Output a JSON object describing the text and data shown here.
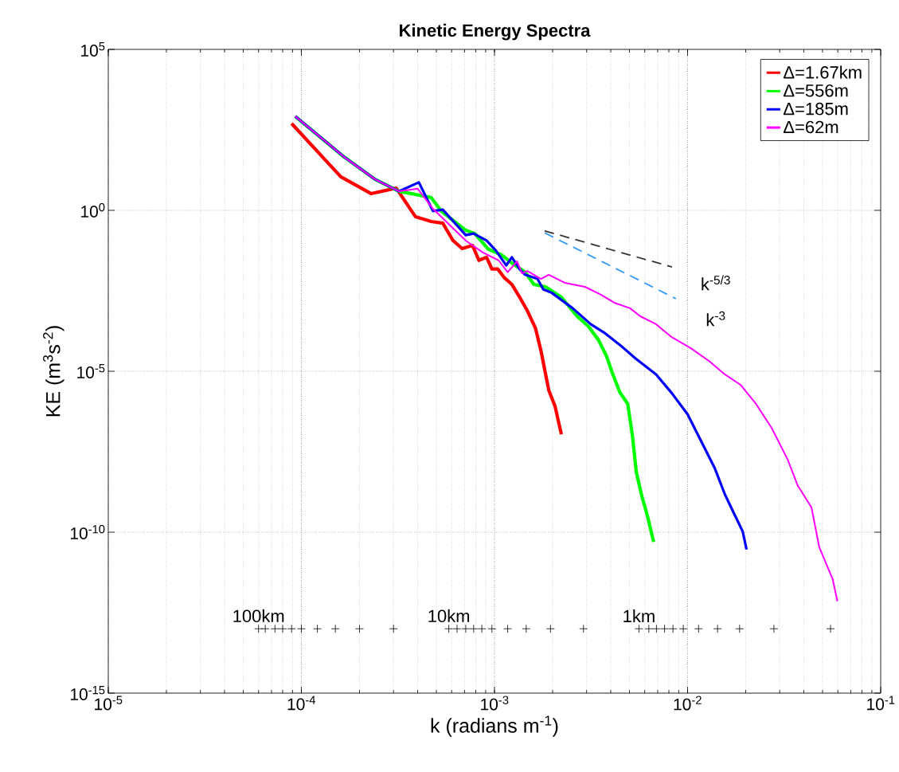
{
  "chart_data": {
    "type": "line",
    "title": "Kinetic Energy Spectra",
    "xlabel": "k (radians m$^{-1}$)",
    "ylabel": "KE (m$^{3}$s$^{-2}$)",
    "log": "xy",
    "grid": true,
    "legend": "top right",
    "xlim": [
      1e-05,
      0.1
    ],
    "ylim": [
      1e-15,
      100000.0
    ],
    "xticks": [
      {
        "value": 1e-05,
        "label": "10$^{-5}$"
      },
      {
        "value": 0.0001,
        "label": "10$^{-4}$"
      },
      {
        "value": 0.001,
        "label": "10$^{-3}$"
      },
      {
        "value": 0.01,
        "label": "10$^{-2}$"
      },
      {
        "value": 0.1,
        "label": "10$^{-1}$"
      }
    ],
    "yticks": [
      {
        "value": 1e-15,
        "label": "10$^{-15}$"
      },
      {
        "value": 1e-10,
        "label": "10$^{-10}$"
      },
      {
        "value": 1e-05,
        "label": "10$^{-5}$"
      },
      {
        "value": 1,
        "label": "10$^{0}$"
      },
      {
        "value": 100000.0,
        "label": "10$^{5}$"
      }
    ],
    "series": [
      {
        "name": "Δ=1.67km",
        "color": "#ff0000",
        "x": [
          8.9e-05,
          0.00016,
          0.00023,
          0.00031,
          0.00039,
          0.00047,
          0.00054,
          0.00061,
          0.00068,
          0.00077,
          0.00083,
          0.00091,
          0.00097,
          0.00104,
          0.00112,
          0.00123,
          0.00135,
          0.00148,
          0.00163,
          0.00174,
          0.00191,
          0.00206,
          0.00222
        ],
        "values": [
          500,
          11,
          3.3,
          4.9,
          0.63,
          0.45,
          0.4,
          0.115,
          0.065,
          0.081,
          0.028,
          0.035,
          0.015,
          0.015,
          0.0083,
          0.005,
          0.002,
          0.00076,
          0.00022,
          4.4e-05,
          2.6e-06,
          8.1e-07,
          1.1e-07
        ]
      },
      {
        "name": "Δ=556m",
        "color": "#00ff00",
        "x": [
          9.3e-05,
          0.000166,
          0.00024,
          0.00032,
          0.00047,
          0.00053,
          0.00062,
          0.00071,
          0.00079,
          0.00093,
          0.00109,
          0.00123,
          0.00144,
          0.0016,
          0.00184,
          0.00222,
          0.00268,
          0.00306,
          0.00346,
          0.0038,
          0.00406,
          0.00446,
          0.0049,
          0.00518,
          0.00543,
          0.0058,
          0.00619,
          0.00667
        ],
        "values": [
          830,
          46,
          9.3,
          3.9,
          2.5,
          0.95,
          0.45,
          0.24,
          0.19,
          0.062,
          0.041,
          0.023,
          0.012,
          0.005,
          0.0042,
          0.002,
          0.00051,
          0.00025,
          9.3e-05,
          3e-05,
          9.5e-06,
          2.2e-06,
          9.7e-07,
          1e-07,
          7.2e-09,
          1.3e-09,
          3.3e-10,
          5e-11
        ]
      },
      {
        "name": "Δ=185m",
        "color": "#0000ff",
        "x": [
          9.3e-05,
          0.000166,
          0.00024,
          0.00032,
          0.000406,
          0.00048,
          0.00054,
          0.00071,
          0.00078,
          0.00091,
          0.00102,
          0.00115,
          0.00123,
          0.00135,
          0.00144,
          0.00167,
          0.00179,
          0.00197,
          0.00254,
          0.00315,
          0.00369,
          0.00446,
          0.00538,
          0.00687,
          0.00828,
          0.01,
          0.0117,
          0.0138,
          0.0156,
          0.0176,
          0.0193,
          0.0202
        ],
        "values": [
          830,
          46,
          9.3,
          3.9,
          7.4,
          0.95,
          1.05,
          0.17,
          0.19,
          0.115,
          0.055,
          0.0195,
          0.035,
          0.0148,
          0.01,
          0.0074,
          0.0035,
          0.0028,
          0.00091,
          0.00029,
          0.00016,
          6.6e-05,
          2.5e-05,
          8e-06,
          2.1e-06,
          4.6e-07,
          7.1e-08,
          1e-08,
          1.5e-09,
          3.3e-10,
          1.05e-10,
          2.9e-11
        ]
      },
      {
        "name": "Δ=62m",
        "color": "#ff00ff",
        "x": [
          9.3e-05,
          0.000166,
          0.00024,
          0.00032,
          0.0004,
          0.00048,
          0.00071,
          0.00087,
          0.00105,
          0.00117,
          0.00131,
          0.00139,
          0.00148,
          0.00174,
          0.00191,
          0.00231,
          0.00294,
          0.00356,
          0.00417,
          0.00504,
          0.00569,
          0.00687,
          0.00828,
          0.0104,
          0.0129,
          0.0156,
          0.0188,
          0.0226,
          0.0273,
          0.033,
          0.0372,
          0.0438,
          0.0481,
          0.0564,
          0.0597
        ],
        "values": [
          830,
          46,
          9.3,
          3.9,
          4.7,
          1.12,
          0.115,
          0.049,
          0.028,
          0.012,
          0.026,
          0.011,
          0.013,
          0.0074,
          0.01,
          0.0056,
          0.0042,
          0.0024,
          0.00135,
          0.00091,
          0.00051,
          0.00029,
          0.000115,
          5.2e-05,
          2.1e-05,
          8e-06,
          3.8e-06,
          9.7e-07,
          1.7e-07,
          1.8e-08,
          2.8e-09,
          5.9e-10,
          3.4e-11,
          3.5e-12,
          7.1e-13
        ]
      },
      {
        "type": "line",
        "line_style": "dashed",
        "color": "#333333",
        "x": [
          0.00182,
          0.0083
        ],
        "values": [
          0.23,
          0.0174
        ]
      },
      {
        "type": "line",
        "line_style": "dashed",
        "color": "#3399ff",
        "x": [
          0.00182,
          0.0087
        ],
        "values": [
          0.2,
          0.0018
        ]
      },
      {
        "type": "scatter",
        "marker": "cross",
        "color": "#000000",
        "x": [
          6e-05,
          6.5e-05,
          7.3e-05,
          8e-05,
          8.9e-05,
          0.0001,
          0.000121,
          0.00015,
          0.0002,
          0.0003,
          0.00058,
          0.00064,
          0.00071,
          0.00078,
          0.00086,
          0.00097,
          0.00117,
          0.00146,
          0.00195,
          0.00289,
          0.0056,
          0.0063,
          0.0069,
          0.0076,
          0.0084,
          0.0095,
          0.0114,
          0.0143,
          0.0186,
          0.028,
          0.055
        ],
        "values": [
          1e-13,
          1e-13,
          1e-13,
          1e-13,
          1e-13,
          1e-13,
          1e-13,
          1e-13,
          1e-13,
          1e-13,
          1e-13,
          1e-13,
          1e-13,
          1e-13,
          1e-13,
          1e-13,
          1e-13,
          1e-13,
          1e-13,
          1e-13,
          1e-13,
          1e-13,
          1e-13,
          1e-13,
          1e-13,
          1e-13,
          1e-13,
          1e-13,
          1e-13,
          1e-13,
          1e-13
        ]
      }
    ],
    "annotations": [
      {
        "text": "k$^{-5/3}$",
        "x": 0.014,
        "y": 0.0056
      },
      {
        "text": "k$^{-3}$",
        "x": 0.014,
        "y": 0.00043
      },
      "100km",
      "10km",
      "1km"
    ]
  }
}
